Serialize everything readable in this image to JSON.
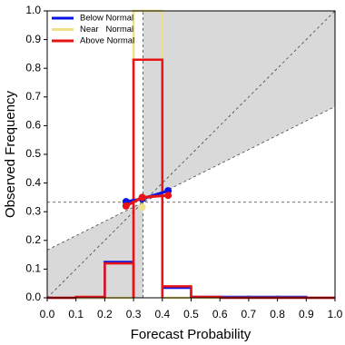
{
  "chart_data": {
    "type": "reliability",
    "xlabel": "Forecast Probability",
    "ylabel": "Observed Frequency",
    "xlim": [
      0,
      1
    ],
    "ylim": [
      0,
      1
    ],
    "xticks": [
      {
        "value": 0,
        "label": "0.0"
      },
      0.1,
      0.2,
      0.3,
      0.4,
      0.5,
      0.6,
      0.7,
      0.8,
      0.9,
      {
        "value": 1,
        "label": "1.0"
      }
    ],
    "yticks": [
      {
        "value": 0,
        "label": "0.0"
      },
      0.1,
      0.2,
      0.3,
      0.4,
      0.5,
      0.6,
      0.7,
      0.8,
      0.9,
      {
        "value": 1,
        "label": "1.0"
      }
    ],
    "climatology": 0.333,
    "bins": [
      0,
      0.1,
      0.2,
      0.3,
      0.4,
      0.5,
      0.6,
      0.7,
      0.8,
      0.9,
      1.0
    ],
    "series": [
      {
        "name": "Below Normal",
        "color": "#0a14e6",
        "frequency": [
          0,
          0,
          0.125,
          0.83,
          0.035,
          0.003,
          0.003,
          0.003,
          0.003,
          0
        ],
        "forecast": [
          0.274,
          0.33,
          0.42
        ],
        "observed": [
          0.335,
          0.345,
          0.373
        ]
      },
      {
        "name": "Near   Normal",
        "color": "#f0e08a",
        "frequency": [
          0,
          0,
          0,
          1.0,
          0,
          0,
          0,
          0,
          0,
          0
        ],
        "forecast": [
          0.33
        ],
        "observed": [
          0.316
        ]
      },
      {
        "name": "Above Normal",
        "color": "#e61414",
        "frequency": [
          0,
          0.003,
          0.12,
          0.83,
          0.04,
          0.003,
          0,
          0,
          0,
          0
        ],
        "forecast": [
          0.274,
          0.33,
          0.42
        ],
        "observed": [
          0.32,
          0.35,
          0.357
        ]
      }
    ]
  }
}
